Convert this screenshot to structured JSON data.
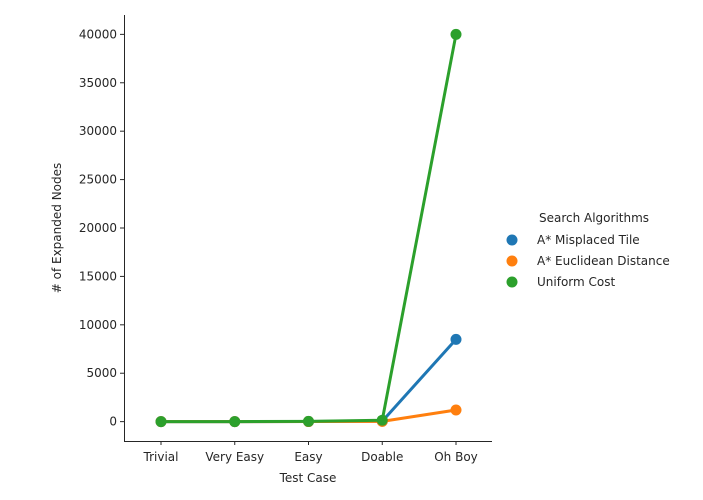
{
  "chart_data": {
    "type": "line",
    "xlabel": "Test Case",
    "ylabel": "# of Expanded Nodes",
    "categories": [
      "Trivial",
      "Very Easy",
      "Easy",
      "Doable",
      "Oh Boy"
    ],
    "ylim": [
      -2000,
      42000
    ],
    "yticks": [
      0,
      5000,
      10000,
      15000,
      20000,
      25000,
      30000,
      35000,
      40000
    ],
    "ytick_labels": [
      "0",
      "5000",
      "10000",
      "15000",
      "20000",
      "25000",
      "30000",
      "35000",
      "40000"
    ],
    "grid": false,
    "legend": {
      "title": "Search Algorithms",
      "position": "right"
    },
    "series": [
      {
        "name": "A* Misplaced Tile",
        "color": "#1f77b4",
        "values": [
          0,
          3,
          10,
          40,
          8500
        ]
      },
      {
        "name": "A* Euclidean Distance",
        "color": "#ff7f0e",
        "values": [
          0,
          3,
          8,
          30,
          1200
        ]
      },
      {
        "name": "Uniform Cost",
        "color": "#2ca02c",
        "values": [
          0,
          5,
          30,
          150,
          40000
        ]
      }
    ]
  }
}
